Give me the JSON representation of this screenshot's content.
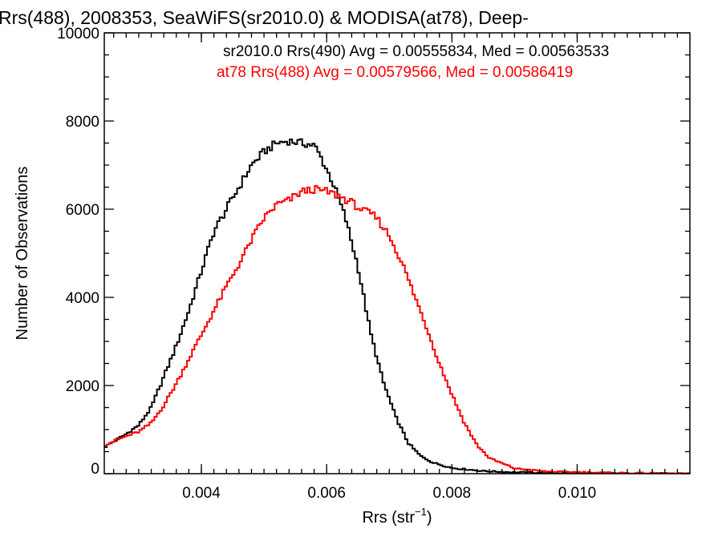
{
  "chart_data": {
    "type": "line",
    "title": "Rrs(488), 2008353, SeaWiFS(sr2010.0) & MODISA(at78), Deep-",
    "xlabel": "Rrs (str",
    "xlabel_sup": "−1",
    "xlabel_suffix": ")",
    "ylabel": "Number of Observations",
    "xlim": [
      0.00245,
      0.0118
    ],
    "ylim": [
      0,
      10000
    ],
    "x_ticks": [
      0.004,
      0.006,
      0.008,
      0.01
    ],
    "x_tick_labels": [
      "0.004",
      "0.006",
      "0.008",
      "0.010"
    ],
    "y_ticks": [
      0,
      2000,
      4000,
      6000,
      8000,
      10000
    ],
    "y_tick_labels": [
      "0",
      "2000",
      "4000",
      "6000",
      "8000",
      "10000"
    ],
    "grid": false,
    "step": true,
    "legend_position": "top-right",
    "series": [
      {
        "name": "sr2010.0 Rrs(490) Avg = 0.00555834, Med = 0.00563533",
        "color": "#000000",
        "points": [
          [
            0.00245,
            600
          ],
          [
            0.0028,
            900
          ],
          [
            0.003,
            1100
          ],
          [
            0.0032,
            1500
          ],
          [
            0.0034,
            2200
          ],
          [
            0.0036,
            2900
          ],
          [
            0.0038,
            3700
          ],
          [
            0.004,
            4600
          ],
          [
            0.0042,
            5500
          ],
          [
            0.0044,
            6000
          ],
          [
            0.0046,
            6500
          ],
          [
            0.0048,
            7000
          ],
          [
            0.005,
            7300
          ],
          [
            0.0052,
            7500
          ],
          [
            0.0054,
            7550
          ],
          [
            0.0056,
            7500
          ],
          [
            0.0058,
            7450
          ],
          [
            0.0059,
            7200
          ],
          [
            0.006,
            6900
          ],
          [
            0.0061,
            6600
          ],
          [
            0.0062,
            6200
          ],
          [
            0.0063,
            5800
          ],
          [
            0.0065,
            4700
          ],
          [
            0.0067,
            3200
          ],
          [
            0.0069,
            2100
          ],
          [
            0.0071,
            1300
          ],
          [
            0.0073,
            700
          ],
          [
            0.0075,
            400
          ],
          [
            0.0077,
            250
          ],
          [
            0.008,
            130
          ],
          [
            0.0085,
            60
          ],
          [
            0.009,
            30
          ],
          [
            0.01,
            10
          ],
          [
            0.0118,
            0
          ]
        ]
      },
      {
        "name": "at78 Rrs(488) Avg = 0.00579566, Med = 0.00586419",
        "color": "#ff0000",
        "points": [
          [
            0.00245,
            650
          ],
          [
            0.0028,
            850
          ],
          [
            0.003,
            950
          ],
          [
            0.0032,
            1150
          ],
          [
            0.0034,
            1550
          ],
          [
            0.0036,
            2050
          ],
          [
            0.0038,
            2600
          ],
          [
            0.004,
            3150
          ],
          [
            0.0042,
            3700
          ],
          [
            0.0044,
            4250
          ],
          [
            0.0046,
            4750
          ],
          [
            0.0048,
            5300
          ],
          [
            0.005,
            5800
          ],
          [
            0.0052,
            6100
          ],
          [
            0.0054,
            6200
          ],
          [
            0.0056,
            6400
          ],
          [
            0.0058,
            6450
          ],
          [
            0.006,
            6400
          ],
          [
            0.0062,
            6300
          ],
          [
            0.0064,
            6150
          ],
          [
            0.0066,
            5950
          ],
          [
            0.0067,
            5900
          ],
          [
            0.0068,
            5800
          ],
          [
            0.007,
            5400
          ],
          [
            0.0072,
            4800
          ],
          [
            0.0074,
            4050
          ],
          [
            0.0076,
            3300
          ],
          [
            0.0078,
            2500
          ],
          [
            0.008,
            1800
          ],
          [
            0.0082,
            1150
          ],
          [
            0.0084,
            650
          ],
          [
            0.0086,
            350
          ],
          [
            0.009,
            120
          ],
          [
            0.0095,
            50
          ],
          [
            0.0105,
            20
          ],
          [
            0.0118,
            0
          ]
        ]
      }
    ]
  }
}
